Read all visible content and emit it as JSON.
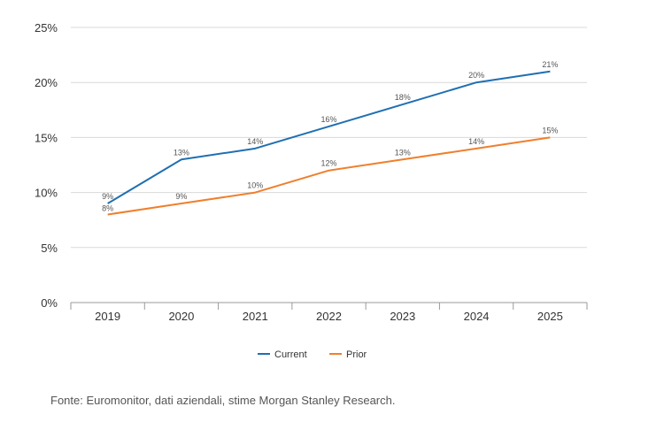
{
  "chart_data": {
    "type": "line",
    "categories": [
      "2019",
      "2020",
      "2021",
      "2022",
      "2023",
      "2024",
      "2025"
    ],
    "series": [
      {
        "name": "Current",
        "values": [
          9,
          13,
          14,
          16,
          18,
          20,
          21
        ],
        "labels": [
          "9%",
          "13%",
          "14%",
          "16%",
          "18%",
          "20%",
          "21%"
        ],
        "color": "#1f6fb2"
      },
      {
        "name": "Prior",
        "values": [
          8,
          9,
          10,
          12,
          13,
          14,
          15
        ],
        "labels": [
          "8%",
          "9%",
          "10%",
          "12%",
          "13%",
          "14%",
          "15%"
        ],
        "color": "#f07f2c"
      }
    ],
    "ylim": [
      0,
      25
    ],
    "yticks": [
      0,
      5,
      10,
      15,
      20,
      25
    ],
    "ytick_labels": [
      "0%",
      "5%",
      "10%",
      "15%",
      "20%",
      "25%"
    ],
    "grid": true,
    "legend": "bottom-center"
  },
  "footer": {
    "source": "Fonte: Euromonitor, dati aziendali, stime Morgan Stanley Research."
  },
  "colors": {
    "grid": "#d9d9d9",
    "axis": "#9a9a9a"
  }
}
